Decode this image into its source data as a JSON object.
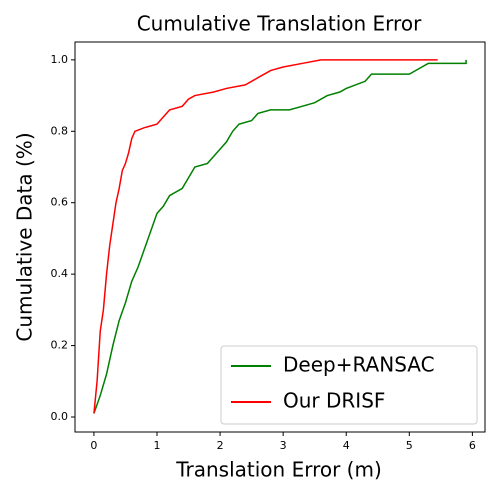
{
  "chart_data": {
    "type": "line",
    "title": "Cumulative Translation Error",
    "x_label": "Translation Error (m)",
    "y_label": "Cumulative Data (%)",
    "xlim": [
      -0.3,
      6.2
    ],
    "ylim": [
      -0.042,
      1.05
    ],
    "xticks": [
      0,
      1,
      2,
      3,
      4,
      5,
      6
    ],
    "yticks": [
      {
        "value": 0,
        "label": "0.0"
      },
      0.2,
      0.4,
      0.6,
      0.8,
      {
        "value": 1,
        "label": "1.0"
      }
    ],
    "legend": "lower right",
    "series": [
      {
        "name": "Deep+RANSAC",
        "color": "#008000",
        "x": [
          0,
          0.1,
          0.2,
          0.3,
          0.4,
          0.5,
          0.6,
          0.7,
          0.8,
          0.9,
          1.0,
          1.1,
          1.2,
          1.4,
          1.5,
          1.6,
          1.8,
          1.9,
          2.0,
          2.1,
          2.2,
          2.3,
          2.5,
          2.6,
          2.8,
          3.1,
          3.3,
          3.5,
          3.7,
          3.9,
          4.0,
          4.3,
          4.4,
          5.0,
          5.2,
          5.3,
          5.9,
          5.9
        ],
        "values": [
          0.01,
          0.06,
          0.12,
          0.2,
          0.27,
          0.32,
          0.38,
          0.42,
          0.47,
          0.52,
          0.57,
          0.59,
          0.62,
          0.64,
          0.67,
          0.7,
          0.71,
          0.73,
          0.75,
          0.77,
          0.8,
          0.82,
          0.83,
          0.85,
          0.86,
          0.86,
          0.87,
          0.88,
          0.9,
          0.91,
          0.92,
          0.94,
          0.96,
          0.96,
          0.98,
          0.99,
          0.99,
          1.0
        ]
      },
      {
        "name": "Our DRISF",
        "color": "#ff0000",
        "x": [
          0,
          0.05,
          0.1,
          0.15,
          0.2,
          0.25,
          0.3,
          0.35,
          0.4,
          0.45,
          0.5,
          0.55,
          0.6,
          0.65,
          0.8,
          1.0,
          1.1,
          1.2,
          1.4,
          1.5,
          1.6,
          1.9,
          2.1,
          2.4,
          2.6,
          2.8,
          3.0,
          3.3,
          3.6,
          5.45
        ],
        "values": [
          0.01,
          0.1,
          0.24,
          0.3,
          0.4,
          0.48,
          0.54,
          0.6,
          0.64,
          0.69,
          0.71,
          0.74,
          0.78,
          0.8,
          0.81,
          0.82,
          0.84,
          0.86,
          0.87,
          0.89,
          0.9,
          0.91,
          0.92,
          0.93,
          0.95,
          0.97,
          0.98,
          0.99,
          1.0,
          1.0
        ]
      }
    ]
  }
}
